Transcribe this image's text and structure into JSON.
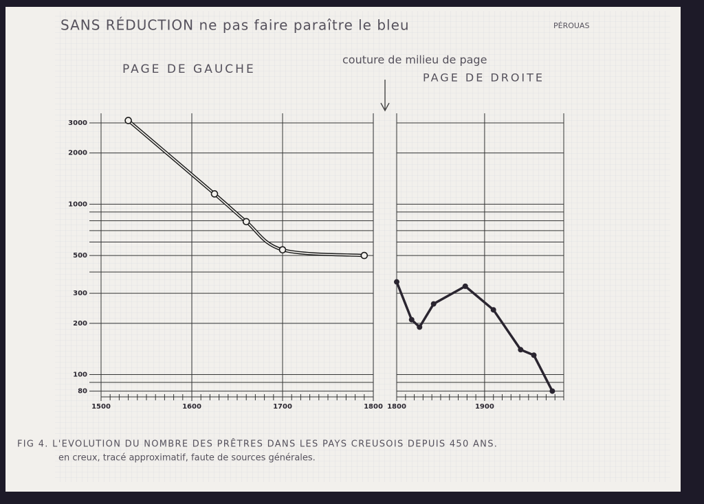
{
  "header": {
    "note": "SANS RÉDUCTION ne pas faire paraître le bleu",
    "author": "PÉROUAS"
  },
  "labels": {
    "left_page": "PAGE DE GAUCHE",
    "fold": "couture de milieu de page",
    "right_page": "PAGE DE DROITE"
  },
  "caption": {
    "line1": "FIG 4. L'EVOLUTION DU NOMBRE DES PRÊTRES DANS LES PAYS CREUSOIS DEPUIS 450 ANS.",
    "line2": "en creux, tracé approximatif, faute de sources générales."
  },
  "chart_data": [
    {
      "type": "line",
      "style": "hollow",
      "log_y": true,
      "color": "#1a1a1a",
      "x": [
        1530,
        1625,
        1660,
        1700,
        1790
      ],
      "values": [
        3100,
        1150,
        790,
        540,
        500
      ],
      "xlim": [
        1500,
        1800
      ],
      "xticks": [
        1500,
        1600,
        1700,
        1800
      ],
      "x_minor_step": 10,
      "ylim": [
        74,
        3000
      ],
      "yticks": [
        80,
        100,
        200,
        300,
        500,
        1000,
        2000,
        3000
      ],
      "show_ytick_labels": true,
      "y_minor_grid": [
        90,
        400,
        600,
        700,
        800,
        900
      ]
    },
    {
      "type": "line",
      "style": "solid",
      "log_y": true,
      "color": "#2a2530",
      "x": [
        1800,
        1817,
        1826,
        1842,
        1878,
        1910,
        1941,
        1956,
        1977
      ],
      "values": [
        350,
        210,
        190,
        260,
        330,
        240,
        140,
        130,
        80
      ],
      "xlim": [
        1800,
        1990
      ],
      "xticks": [
        1800,
        1900
      ],
      "x_minor_step": 10,
      "ylim": [
        74,
        3000
      ],
      "yticks": [
        80,
        100,
        200,
        300,
        500,
        1000,
        2000,
        3000
      ],
      "show_ytick_labels": false,
      "y_minor_grid": [
        90,
        400,
        600,
        700,
        800,
        900
      ]
    }
  ]
}
